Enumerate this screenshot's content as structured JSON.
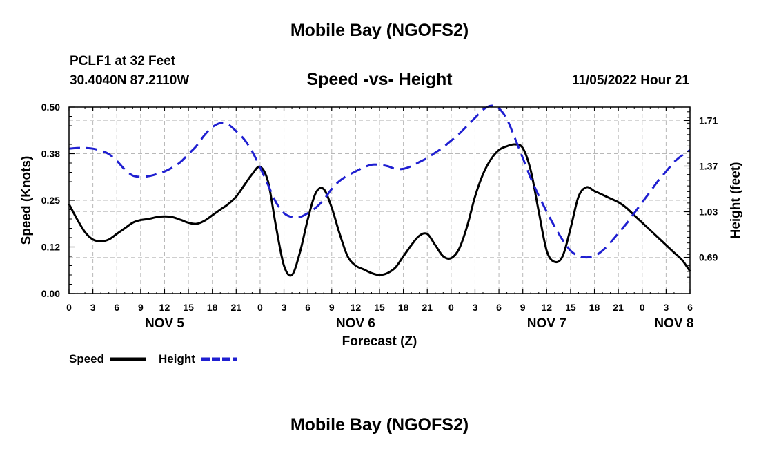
{
  "header": {
    "title": "Mobile Bay (NGOFS2)",
    "station": "PCLF1 at 32 Feet",
    "coords": "30.4040N  87.2110W",
    "subtitle": "Speed -vs- Height",
    "datetime": "11/05/2022 Hour 21",
    "footer_title": "Mobile Bay (NGOFS2)"
  },
  "chart_data": {
    "type": "line",
    "title": "Speed -vs- Height",
    "xlabel": "Forecast (Z)",
    "ylabel_left": "Speed (Knots)",
    "ylabel_right": "Height (feet)",
    "xlim": [
      0,
      78
    ],
    "ylim_left": [
      0,
      0.5
    ],
    "ylim_right": [
      0.42,
      1.81
    ],
    "x_ticks": [
      0,
      3,
      6,
      9,
      12,
      15,
      18,
      21,
      24,
      27,
      30,
      33,
      36,
      39,
      42,
      45,
      48,
      51,
      54,
      57,
      60,
      63,
      66,
      69,
      72,
      75,
      78
    ],
    "x_tick_labels": [
      "0",
      "3",
      "6",
      "9",
      "12",
      "15",
      "18",
      "21",
      "0",
      "3",
      "6",
      "9",
      "12",
      "15",
      "18",
      "21",
      "0",
      "3",
      "6",
      "9",
      "12",
      "15",
      "18",
      "21",
      "0",
      "3",
      "6"
    ],
    "day_labels": [
      {
        "x": 12,
        "text": "NOV 5"
      },
      {
        "x": 36,
        "text": "NOV 6"
      },
      {
        "x": 60,
        "text": "NOV 7"
      },
      {
        "x": 76,
        "text": "NOV 8"
      }
    ],
    "y_left_ticks": [
      0.0,
      0.125,
      0.25,
      0.375,
      0.5
    ],
    "y_left_tick_labels": [
      "0.00",
      "0.12",
      "0.25",
      "0.38",
      "0.50"
    ],
    "y_right_ticks": [
      0.69,
      1.03,
      1.37,
      1.71
    ],
    "y_right_tick_labels": [
      "0.69",
      "1.03",
      "1.37",
      "1.71"
    ],
    "series": [
      {
        "name": "Speed",
        "axis": "left",
        "color": "#000000",
        "style": "solid",
        "x": [
          0,
          1,
          2,
          3,
          4,
          5,
          6,
          7,
          8,
          9,
          10,
          11,
          12,
          13,
          14,
          15,
          16,
          17,
          18,
          19,
          20,
          21,
          22,
          23,
          24,
          25,
          26,
          27,
          28,
          29,
          30,
          31,
          32,
          33,
          34,
          35,
          36,
          37,
          38,
          39,
          40,
          41,
          42,
          43,
          44,
          45,
          46,
          47,
          48,
          49,
          50,
          51,
          52,
          53,
          54,
          55,
          56,
          57,
          58,
          59,
          60,
          61,
          62,
          63,
          64,
          65,
          66,
          67,
          68,
          69,
          70,
          71,
          72,
          73,
          74,
          75,
          76,
          77,
          78
        ],
        "values": [
          0.24,
          0.2,
          0.165,
          0.145,
          0.14,
          0.145,
          0.16,
          0.175,
          0.19,
          0.197,
          0.2,
          0.205,
          0.207,
          0.205,
          0.198,
          0.19,
          0.187,
          0.195,
          0.21,
          0.225,
          0.24,
          0.26,
          0.29,
          0.32,
          0.34,
          0.3,
          0.18,
          0.075,
          0.05,
          0.11,
          0.2,
          0.27,
          0.28,
          0.23,
          0.16,
          0.1,
          0.075,
          0.065,
          0.055,
          0.05,
          0.055,
          0.07,
          0.1,
          0.13,
          0.155,
          0.16,
          0.13,
          0.1,
          0.095,
          0.12,
          0.18,
          0.26,
          0.32,
          0.36,
          0.385,
          0.395,
          0.4,
          0.39,
          0.33,
          0.22,
          0.115,
          0.085,
          0.1,
          0.175,
          0.26,
          0.285,
          0.275,
          0.265,
          0.255,
          0.245,
          0.23,
          0.21,
          0.19,
          0.17,
          0.15,
          0.13,
          0.11,
          0.09,
          0.06
        ],
        "values_note": "knots"
      },
      {
        "name": "Height",
        "axis": "right",
        "color": "#1f1fd1",
        "style": "dashed",
        "x": [
          0,
          1,
          2,
          3,
          4,
          5,
          6,
          7,
          8,
          9,
          10,
          11,
          12,
          13,
          14,
          15,
          16,
          17,
          18,
          19,
          20,
          21,
          22,
          23,
          24,
          25,
          26,
          27,
          28,
          29,
          30,
          31,
          32,
          33,
          34,
          35,
          36,
          37,
          38,
          39,
          40,
          41,
          42,
          43,
          44,
          45,
          46,
          47,
          48,
          49,
          50,
          51,
          52,
          53,
          54,
          55,
          56,
          57,
          58,
          59,
          60,
          61,
          62,
          63,
          64,
          65,
          66,
          67,
          68,
          69,
          70,
          71,
          72,
          73,
          74,
          75,
          76,
          77,
          78
        ],
        "values": [
          1.5,
          1.505,
          1.505,
          1.5,
          1.485,
          1.46,
          1.41,
          1.345,
          1.3,
          1.29,
          1.295,
          1.31,
          1.33,
          1.36,
          1.4,
          1.46,
          1.52,
          1.6,
          1.66,
          1.69,
          1.68,
          1.63,
          1.57,
          1.48,
          1.36,
          1.23,
          1.1,
          1.02,
          0.99,
          0.99,
          1.02,
          1.06,
          1.12,
          1.2,
          1.26,
          1.3,
          1.33,
          1.36,
          1.38,
          1.38,
          1.37,
          1.35,
          1.35,
          1.37,
          1.4,
          1.43,
          1.47,
          1.51,
          1.56,
          1.61,
          1.67,
          1.73,
          1.79,
          1.82,
          1.8,
          1.72,
          1.58,
          1.43,
          1.28,
          1.15,
          1.03,
          0.92,
          0.82,
          0.74,
          0.7,
          0.69,
          0.7,
          0.74,
          0.8,
          0.87,
          0.94,
          1.02,
          1.1,
          1.18,
          1.26,
          1.33,
          1.4,
          1.45,
          1.49
        ],
        "values_note": "feet"
      }
    ],
    "legend": [
      {
        "label": "Speed",
        "color": "#000000",
        "style": "solid"
      },
      {
        "label": "Height",
        "color": "#1f1fd1",
        "style": "dashed"
      }
    ],
    "grid": true
  }
}
